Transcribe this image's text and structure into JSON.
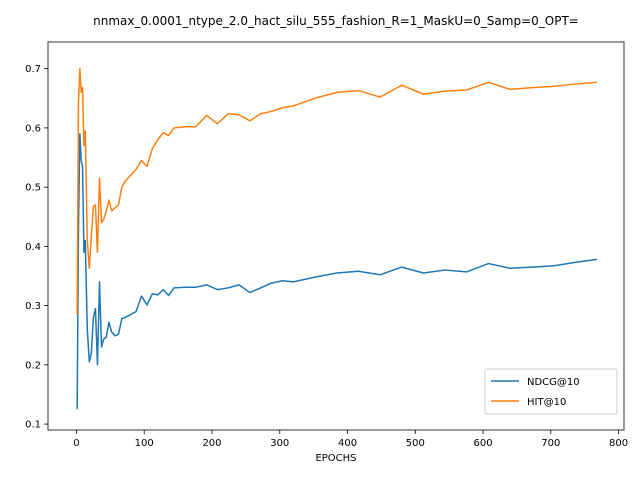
{
  "chart_data": {
    "type": "line",
    "title": "nnmax_0.0001_ntype_2.0_hact_silu_555_fashion_R=1_MaskU=0_Samp=0_OPT=",
    "xlabel": "EPOCHS",
    "ylabel": "",
    "xlim": [
      -42,
      808
    ],
    "ylim": [
      0.09,
      0.745
    ],
    "xticks": [
      0,
      100,
      200,
      300,
      400,
      500,
      600,
      700,
      800
    ],
    "yticks": [
      0.1,
      0.2,
      0.3,
      0.4,
      0.5,
      0.6,
      0.7
    ],
    "grid": false,
    "legend_position": "lower-right",
    "series": [
      {
        "name": "NDCG@10",
        "color": "#1f77b4",
        "x": [
          1,
          3,
          5,
          7,
          9,
          11,
          13,
          16,
          19,
          22,
          25,
          28,
          31,
          34,
          37,
          40,
          44,
          48,
          52,
          57,
          62,
          67,
          72,
          80,
          88,
          96,
          104,
          112,
          120,
          128,
          136,
          144,
          160,
          176,
          192,
          208,
          224,
          240,
          256,
          272,
          288,
          304,
          320,
          352,
          384,
          416,
          448,
          480,
          512,
          544,
          576,
          608,
          640,
          672,
          704,
          736,
          768
        ],
        "y": [
          0.125,
          0.43,
          0.59,
          0.545,
          0.535,
          0.39,
          0.41,
          0.26,
          0.205,
          0.22,
          0.28,
          0.295,
          0.2,
          0.34,
          0.23,
          0.243,
          0.247,
          0.272,
          0.255,
          0.249,
          0.252,
          0.278,
          0.28,
          0.285,
          0.29,
          0.316,
          0.301,
          0.32,
          0.318,
          0.327,
          0.317,
          0.33,
          0.331,
          0.331,
          0.335,
          0.327,
          0.33,
          0.335,
          0.322,
          0.33,
          0.338,
          0.342,
          0.34,
          0.348,
          0.355,
          0.358,
          0.352,
          0.365,
          0.355,
          0.36,
          0.357,
          0.371,
          0.363,
          0.365,
          0.367,
          0.373,
          0.378
        ]
      },
      {
        "name": "HIT@10",
        "color": "#ff7f0e",
        "x": [
          1,
          3,
          5,
          7,
          9,
          11,
          13,
          16,
          19,
          22,
          25,
          28,
          31,
          34,
          37,
          40,
          44,
          48,
          52,
          57,
          62,
          67,
          72,
          80,
          88,
          96,
          104,
          112,
          120,
          128,
          136,
          144,
          160,
          176,
          192,
          208,
          224,
          240,
          256,
          272,
          288,
          304,
          320,
          352,
          384,
          416,
          448,
          480,
          512,
          544,
          576,
          608,
          640,
          672,
          704,
          736,
          768
        ],
        "y": [
          0.285,
          0.645,
          0.7,
          0.66,
          0.668,
          0.57,
          0.595,
          0.41,
          0.363,
          0.418,
          0.468,
          0.47,
          0.39,
          0.515,
          0.44,
          0.445,
          0.46,
          0.478,
          0.46,
          0.465,
          0.47,
          0.5,
          0.51,
          0.52,
          0.53,
          0.545,
          0.535,
          0.565,
          0.58,
          0.592,
          0.587,
          0.6,
          0.602,
          0.602,
          0.621,
          0.607,
          0.624,
          0.622,
          0.612,
          0.624,
          0.628,
          0.634,
          0.637,
          0.65,
          0.66,
          0.663,
          0.652,
          0.672,
          0.657,
          0.662,
          0.664,
          0.677,
          0.665,
          0.668,
          0.67,
          0.674,
          0.677
        ]
      }
    ]
  }
}
